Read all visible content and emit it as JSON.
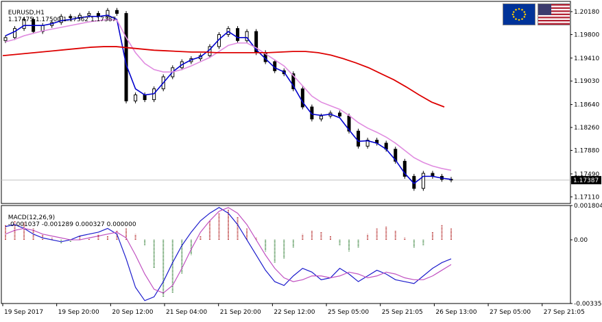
{
  "header": {
    "symbol": "EURUSD,H1",
    "ohlc": "1.17475 1.17500 1.17362 1.17387",
    "current_price": "1.17387"
  },
  "flags": {
    "left": "eu-flag-icon",
    "right": "us-flag-icon"
  },
  "macd": {
    "label": "MACD(12,26,9)",
    "values": "-0.001037 -0.001289 0.000327 0.000000"
  },
  "colors": {
    "bull_candle": "#000000",
    "bear_candle": "#000000",
    "ma_fast": "#0000cc",
    "ma_mid": "#e08be0",
    "ma_slow": "#dd0000",
    "hist_pos": "#b22222",
    "hist_neg": "#2e7d32",
    "macd_line": "#1a1acc",
    "signal_line": "#c050c0"
  },
  "chart_data": [
    {
      "type": "candlestick",
      "title": "EURUSD,H1",
      "y_ticks": [
        "1.20180",
        "1.19800",
        "1.19410",
        "1.19030",
        "1.18640",
        "1.18260",
        "1.17880",
        "1.17490",
        "1.17110"
      ],
      "ylim": [
        1.17,
        1.2035
      ],
      "x_ticks": [
        "19 Sep 2017",
        "19 Sep 20:00",
        "20 Sep 12:00",
        "21 Sep 04:00",
        "21 Sep 20:00",
        "22 Sep 12:00",
        "25 Sep 05:00",
        "25 Sep 21:05",
        "26 Sep 13:00",
        "27 Sep 05:00",
        "27 Sep 21:05"
      ],
      "close_trace": [
        1.1975,
        1.199,
        1.2005,
        1.1985,
        1.1995,
        1.2,
        1.201,
        1.2008,
        1.2012,
        1.2015,
        1.201,
        1.202,
        1.2015,
        1.187,
        1.188,
        1.1872,
        1.189,
        1.191,
        1.1925,
        1.1935,
        1.194,
        1.1945,
        1.196,
        1.198,
        1.199,
        1.197,
        1.1985,
        1.195,
        1.1935,
        1.192,
        1.1915,
        1.189,
        1.186,
        1.184,
        1.1845,
        1.185,
        1.1845,
        1.182,
        1.1795,
        1.1805,
        1.18,
        1.179,
        1.177,
        1.1745,
        1.1725,
        1.175,
        1.1745,
        1.174,
        1.1739
      ],
      "ma_fast_trace": [
        1.1978,
        1.1985,
        1.1995,
        1.1995,
        1.1995,
        1.1998,
        1.2003,
        1.2005,
        1.2008,
        1.201,
        1.201,
        1.2012,
        1.2005,
        1.193,
        1.189,
        1.188,
        1.1882,
        1.19,
        1.1918,
        1.193,
        1.1938,
        1.1943,
        1.1955,
        1.1972,
        1.1985,
        1.1975,
        1.1975,
        1.1955,
        1.194,
        1.1925,
        1.1918,
        1.1895,
        1.1868,
        1.1848,
        1.1846,
        1.1848,
        1.1842,
        1.1822,
        1.1803,
        1.1804,
        1.18,
        1.179,
        1.1772,
        1.175,
        1.1733,
        1.1745,
        1.1745,
        1.1742,
        1.174
      ],
      "ma_mid_trace": [
        1.1968,
        1.1972,
        1.1978,
        1.1982,
        1.1986,
        1.1989,
        1.1992,
        1.1995,
        1.1998,
        1.2001,
        1.2003,
        1.2005,
        1.2004,
        1.1975,
        1.195,
        1.1932,
        1.1922,
        1.1918,
        1.1918,
        1.1922,
        1.1928,
        1.1935,
        1.1942,
        1.1952,
        1.1962,
        1.1966,
        1.1966,
        1.1958,
        1.1948,
        1.1938,
        1.1928,
        1.1912,
        1.1895,
        1.1878,
        1.1868,
        1.1862,
        1.1856,
        1.1846,
        1.1834,
        1.1825,
        1.1818,
        1.181,
        1.18,
        1.1788,
        1.1776,
        1.1768,
        1.1762,
        1.1758,
        1.1755
      ],
      "ma_slow_trace": [
        1.1945,
        1.1947,
        1.1949,
        1.1951,
        1.1953,
        1.1955,
        1.1957,
        1.1959,
        1.196,
        1.196,
        1.1958,
        1.1956,
        1.1954,
        1.1953,
        1.1952,
        1.1951,
        1.1951,
        1.195,
        1.195,
        1.195,
        1.195,
        1.195,
        1.1951,
        1.1952,
        1.1952,
        1.195,
        1.1946,
        1.194,
        1.1933,
        1.1925,
        1.1915,
        1.1905,
        1.1893,
        1.188,
        1.1868,
        1.186
      ],
      "current_price": 1.17387
    },
    {
      "type": "histogram+line",
      "title": "MACD(12,26,9)",
      "y_ticks": [
        "0.001804",
        "0.00",
        "-0.003351"
      ],
      "ylim": [
        -0.003351,
        0.001804
      ],
      "histogram": [
        0.0008,
        0.001,
        0.0009,
        0.0006,
        0.0003,
        0.0001,
        -0.0002,
        -0.0001,
        0.0002,
        0.0001,
        0.0003,
        0.0002,
        0.0005,
        0.0006,
        0.0003,
        -0.0003,
        -0.0015,
        -0.003,
        -0.0028,
        -0.0018,
        -0.0008,
        0.0002,
        0.001,
        0.0014,
        0.0016,
        0.0012,
        0.0006,
        0.0001,
        -0.0006,
        -0.0012,
        -0.001,
        -0.0004,
        0.0003,
        0.0005,
        0.0004,
        0.0002,
        -0.0003,
        -0.0006,
        -0.0004,
        0.0003,
        0.0006,
        0.0007,
        0.0005,
        0.0001,
        -0.0004,
        -0.0003,
        0.0004,
        0.0008,
        0.0006
      ],
      "macd_trace": [
        0.0007,
        0.0008,
        0.0006,
        0.0003,
        0.0001,
        0.0,
        -0.0001,
        0.0,
        0.0002,
        0.0003,
        0.0004,
        0.0006,
        0.0003,
        -0.001,
        -0.0025,
        -0.0032,
        -0.003,
        -0.0022,
        -0.0012,
        -0.0003,
        0.0004,
        0.001,
        0.0014,
        0.0017,
        0.0014,
        0.0008,
        0.0,
        -0.0008,
        -0.0016,
        -0.0022,
        -0.0024,
        -0.0019,
        -0.0015,
        -0.0017,
        -0.0021,
        -0.002,
        -0.0015,
        -0.0018,
        -0.0022,
        -0.0019,
        -0.0016,
        -0.0018,
        -0.0021,
        -0.0022,
        -0.0023,
        -0.0019,
        -0.0015,
        -0.0012,
        -0.001
      ],
      "signal_trace": [
        0.0003,
        0.0005,
        0.0006,
        0.0005,
        0.0003,
        0.0002,
        0.0001,
        0.0,
        0.0,
        0.0001,
        0.0002,
        0.0003,
        0.0004,
        0.0001,
        -0.0008,
        -0.0018,
        -0.0026,
        -0.0028,
        -0.0024,
        -0.0015,
        -0.0005,
        0.0004,
        0.001,
        0.0015,
        0.0017,
        0.0014,
        0.0008,
        0.0,
        -0.0008,
        -0.0015,
        -0.002,
        -0.0022,
        -0.0021,
        -0.0019,
        -0.0019,
        -0.002,
        -0.0019,
        -0.0017,
        -0.0018,
        -0.002,
        -0.0019,
        -0.0017,
        -0.0018,
        -0.002,
        -0.0021,
        -0.0021,
        -0.0019,
        -0.0016,
        -0.0013
      ]
    }
  ]
}
